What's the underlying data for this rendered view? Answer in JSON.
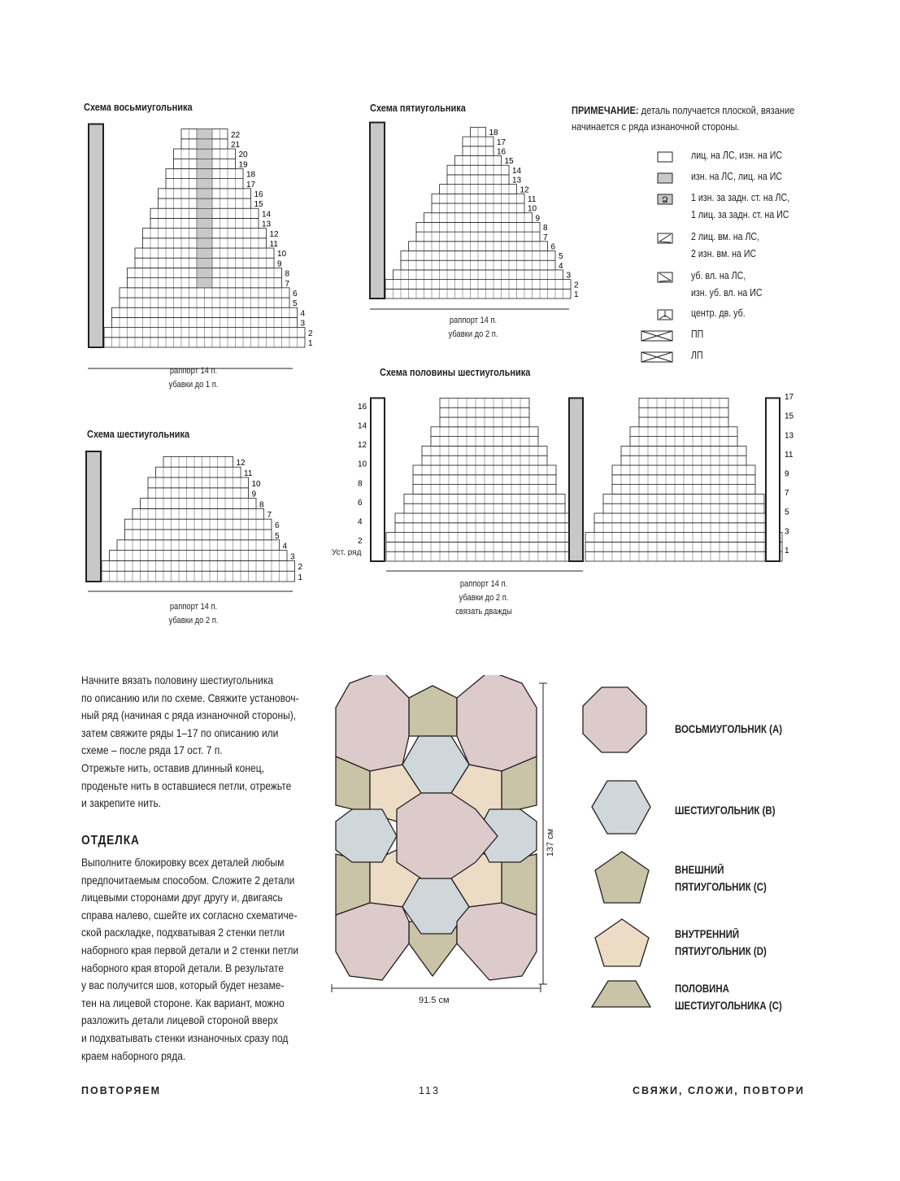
{
  "charts": [
    {
      "id": "octagon",
      "title": "Схема восьмиугольника",
      "rows": 22,
      "caption": [
        "раппорт 14 п.",
        "убавки до 1 п."
      ]
    },
    {
      "id": "pentagon",
      "title": "Схема пятиугольника",
      "rows": 18,
      "caption": [
        "раппорт 14 п.",
        "убавки до 2 п."
      ]
    },
    {
      "id": "hexagon",
      "title": "Схема шестиугольника",
      "rows": 12,
      "caption": [
        "раппорт 14 п.",
        "убавки до 2 п."
      ]
    },
    {
      "id": "halfhex",
      "title": "Схема половины шестиугольника",
      "rows": 17,
      "setup_label": "Уст. ряд",
      "left_labels": [
        "2",
        "4",
        "6",
        "8",
        "10",
        "12",
        "14",
        "16"
      ],
      "right_labels": [
        "1",
        "3",
        "5",
        "7",
        "9",
        "11",
        "13",
        "15",
        "17"
      ],
      "caption": [
        "раппорт 14 п.",
        "убавки до 2 п.",
        "связать дважды"
      ]
    }
  ],
  "note": {
    "bold": "ПРИМЕЧАНИЕ:",
    "text": " деталь получается плоской, вязание начинается с ряда изнаночной стороны."
  },
  "legend": [
    {
      "icon": "blank-square-icon",
      "text": "лиц. на ЛС, изн. на ИС"
    },
    {
      "icon": "gray-square-icon",
      "text": "изн. на ЛС, лиц. на ИС"
    },
    {
      "icon": "twisted-stitch-icon",
      "text": "1 изн. за задн. ст. на ЛС,\n1 лиц. за задн. ст. на ИС"
    },
    {
      "icon": "k2tog-icon",
      "text": "2 лиц. вм. на ЛС,\n2 изн. вм. на ИС"
    },
    {
      "icon": "ssk-icon",
      "text": "уб. вл. на ЛС,\nизн. уб. вл. на ИС"
    },
    {
      "icon": "central-double-decrease-icon",
      "text": "центр. дв. уб."
    },
    {
      "icon": "right-cross-icon",
      "text": "ПП"
    },
    {
      "icon": "left-cross-icon",
      "text": "ЛП"
    }
  ],
  "instructions": "Начните вязать половину шестиугольника\nпо описанию или по схеме. Свяжите установоч-\nный ряд (начиная с ряда изнаночной стороны),\nзатем свяжите ряды 1–17 по описанию или\nсхеме – после ряда 17 ост. 7 п.\nОтрежьте нить, оставив длинный конец,\nпроденьте нить в оставшиеся петли, отрежьте\nи закрепите нить.",
  "finishing": {
    "heading": "ОТДЕЛКА",
    "text": "Выполните блокировку всех деталей любым\nпредпочитаемым способом. Сложите 2 детали\nлицевыми сторонами друг другу и, двигаясь\nсправа налево, сшейте их согласно схематиче-\nской раскладке, подхватывая 2 стенки петли\nнаборного края первой детали и 2 стенки петли\nнаборного края второй детали. В результате\nу вас получится шов, который будет незаме-\nтен на лицевой стороне. Как вариант, можно\nразложить детали лицевой стороной вверх\nи подхватывать стенки изнаночных сразу под\nкраем наборного ряда."
  },
  "layout": {
    "width": "91.5 см",
    "height": "137 см"
  },
  "shapes": [
    {
      "label": "ВОСЬМИУГОЛЬНИК (A)",
      "color": "#dccbca"
    },
    {
      "label": "ШЕСТИУГОЛЬНИК (B)",
      "color": "#cfd7da"
    },
    {
      "label": "ВНЕШНИЙ\nПЯТИУГОЛЬНИК (C)",
      "color": "#c9c3a8"
    },
    {
      "label": "ВНУТРЕННИЙ\nПЯТИУГОЛЬНИК (D)",
      "color": "#ecdcc5"
    },
    {
      "label": "ПОЛОВИНА\nШЕСТИУГОЛЬНИКА (C)",
      "color": "#c9c3a8"
    }
  ],
  "footer": {
    "left": "ПОВТОРЯЕМ",
    "page": "113",
    "right": "СВЯЖИ, СЛОЖИ, ПОВТОРИ"
  }
}
